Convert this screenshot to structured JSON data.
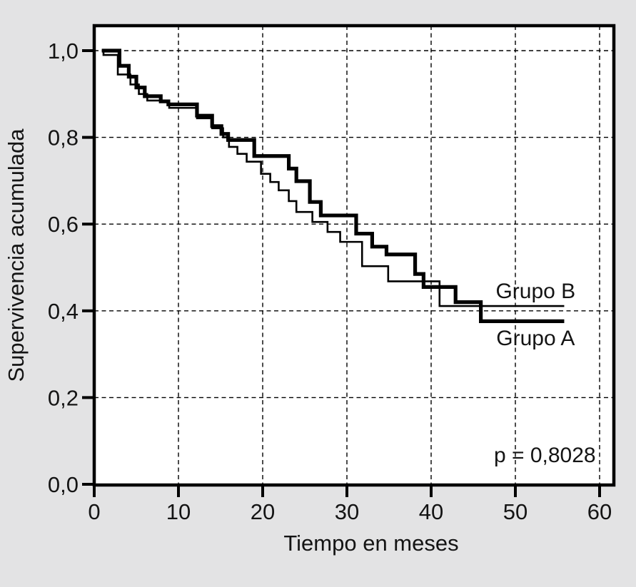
{
  "figure": {
    "kind": "kaplan-meier-survival-plot"
  },
  "colors": {
    "background": "#e3e3e4",
    "plot_background": "#ffffff",
    "curve": "#000000",
    "grid": "#000000",
    "text": "#141414"
  },
  "chart_data": {
    "type": "line",
    "subtype": "step-survival-curves",
    "title": "",
    "xlabel": "Tiempo en meses",
    "ylabel": "Supervivencia acumulada",
    "xlim": [
      0,
      61.6
    ],
    "ylim": [
      0,
      1.057
    ],
    "grid": "dashed",
    "legend_position": "inline-right",
    "x_ticks": {
      "values": [
        0,
        10,
        20,
        30,
        40,
        50,
        60
      ],
      "labels": [
        "0",
        "10",
        "20",
        "30",
        "40",
        "50",
        "60"
      ]
    },
    "y_ticks": {
      "values": [
        0.0,
        0.2,
        0.4,
        0.6,
        0.8,
        1.0
      ],
      "labels": [
        "0,0",
        "0,2",
        "0,4",
        "0,6",
        "0,8",
        "1,0"
      ]
    },
    "series": [
      {
        "name": "Grupo B",
        "line_style": "thin",
        "stroke_width": 2.6,
        "color": "#000000",
        "end_t": 55.8,
        "points": [
          [
            0.9,
            1.0
          ],
          [
            1.1,
            0.99
          ],
          [
            2.8,
            0.945
          ],
          [
            4.3,
            0.922
          ],
          [
            5.3,
            0.9
          ],
          [
            6.3,
            0.885
          ],
          [
            8.9,
            0.868
          ],
          [
            12.2,
            0.844
          ],
          [
            14.0,
            0.821
          ],
          [
            15.3,
            0.8
          ],
          [
            16.0,
            0.778
          ],
          [
            17.0,
            0.762
          ],
          [
            18.1,
            0.744
          ],
          [
            19.8,
            0.716
          ],
          [
            20.9,
            0.697
          ],
          [
            21.9,
            0.678
          ],
          [
            23.1,
            0.653
          ],
          [
            24.0,
            0.628
          ],
          [
            25.9,
            0.605
          ],
          [
            27.7,
            0.582
          ],
          [
            29.2,
            0.559
          ],
          [
            31.8,
            0.503
          ],
          [
            34.9,
            0.468
          ],
          [
            41.0,
            0.411
          ]
        ]
      },
      {
        "name": "Grupo A",
        "line_style": "thick",
        "stroke_width": 5.2,
        "color": "#000000",
        "end_t": 55.8,
        "points": [
          [
            0.9,
            1.0
          ],
          [
            3.0,
            0.965
          ],
          [
            4.1,
            0.94
          ],
          [
            5.0,
            0.915
          ],
          [
            6.0,
            0.895
          ],
          [
            7.9,
            0.883
          ],
          [
            8.8,
            0.876
          ],
          [
            12.2,
            0.85
          ],
          [
            14.0,
            0.826
          ],
          [
            15.1,
            0.808
          ],
          [
            15.9,
            0.794
          ],
          [
            19.0,
            0.757
          ],
          [
            23.1,
            0.728
          ],
          [
            24.0,
            0.699
          ],
          [
            25.6,
            0.651
          ],
          [
            26.9,
            0.62
          ],
          [
            31.1,
            0.578
          ],
          [
            33.0,
            0.548
          ],
          [
            34.7,
            0.53
          ],
          [
            38.1,
            0.485
          ],
          [
            39.1,
            0.455
          ],
          [
            42.9,
            0.42
          ],
          [
            45.9,
            0.376
          ]
        ]
      }
    ],
    "annotations": [
      {
        "id": "grupo-b-label",
        "text": "Grupo B",
        "t": 52.4,
        "v": 0.447
      },
      {
        "id": "grupo-a-label",
        "text": "Grupo A",
        "t": 52.4,
        "v": 0.339
      },
      {
        "id": "p-value-label",
        "text": "p = 0,8028",
        "t": 53.5,
        "v": 0.069
      }
    ],
    "p_value": "0,8028"
  }
}
